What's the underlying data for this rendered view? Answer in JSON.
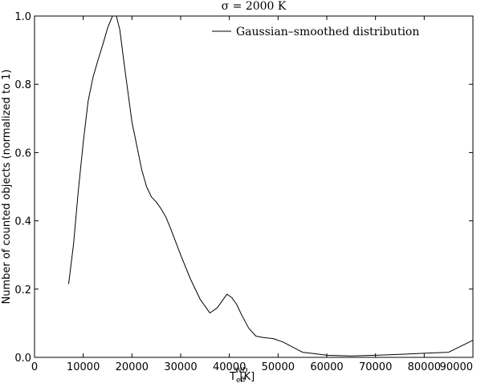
{
  "chart_data": {
    "type": "line",
    "title": "σ = 2000 K",
    "xlabel": "T_eff^WD [K]",
    "xlabel_main": "T",
    "xlabel_sub": "eff",
    "xlabel_sup": "WD",
    "xlabel_unit": "[K]",
    "ylabel": "Number of counted objects (normalized to 1)",
    "xlim": [
      0,
      90000
    ],
    "ylim": [
      0.0,
      1.0
    ],
    "x_ticks": [
      0,
      10000,
      20000,
      30000,
      40000,
      50000,
      60000,
      70000,
      80000,
      90000
    ],
    "x_tick_labels": [
      "0",
      "10000",
      "20000",
      "30000",
      "40000",
      "50000",
      "60000",
      "70000",
      "80000",
      "90000"
    ],
    "y_ticks": [
      0.0,
      0.2,
      0.4,
      0.6,
      0.8,
      1.0
    ],
    "y_tick_labels": [
      "0.0",
      "0.2",
      "0.4",
      "0.6",
      "0.8",
      "1.0"
    ],
    "grid": false,
    "legend_position": "top-right",
    "series": [
      {
        "name": "Gaussian–smoothed distribution",
        "color": "#000000",
        "x": [
          7000,
          8000,
          9000,
          10000,
          11000,
          12000,
          13000,
          14000,
          15000,
          16000,
          16800,
          17500,
          18500,
          20000,
          21000,
          22000,
          23000,
          24000,
          25000,
          26000,
          27000,
          28000,
          30000,
          32000,
          34000,
          36000,
          37500,
          38500,
          39500,
          40500,
          41500,
          42500,
          44000,
          45500,
          47000,
          49000,
          51000,
          53000,
          55000,
          58000,
          60000,
          65000,
          70000,
          75000,
          80000,
          85000,
          90000
        ],
        "y": [
          0.215,
          0.33,
          0.49,
          0.63,
          0.75,
          0.82,
          0.87,
          0.915,
          0.965,
          1.0,
          1.0,
          0.96,
          0.85,
          0.69,
          0.62,
          0.55,
          0.5,
          0.47,
          0.455,
          0.435,
          0.41,
          0.375,
          0.3,
          0.23,
          0.17,
          0.13,
          0.145,
          0.165,
          0.185,
          0.175,
          0.155,
          0.125,
          0.085,
          0.062,
          0.058,
          0.055,
          0.045,
          0.03,
          0.015,
          0.01,
          0.006,
          0.004,
          0.006,
          0.009,
          0.012,
          0.015,
          0.05
        ]
      }
    ]
  }
}
